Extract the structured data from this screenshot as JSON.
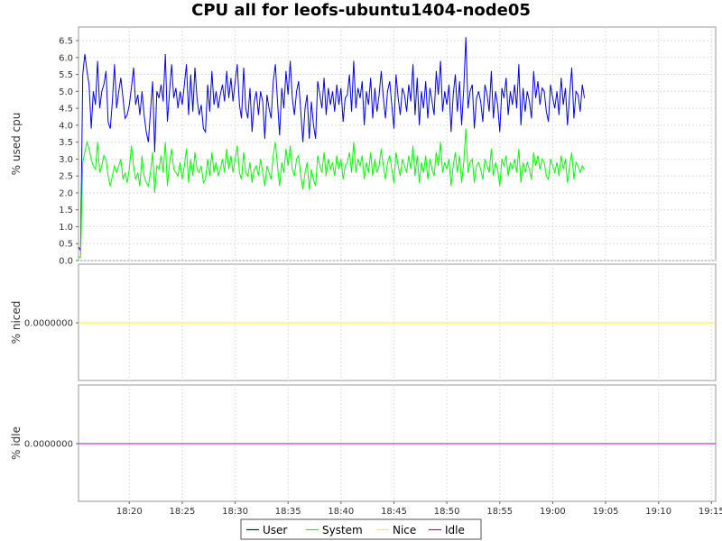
{
  "chart_data": {
    "type": "line",
    "title": "CPU all for leofs-ubuntu1404-node05",
    "x_ticks": [
      "18:20",
      "18:25",
      "18:30",
      "18:35",
      "18:40",
      "18:45",
      "18:50",
      "18:55",
      "19:00",
      "19:05",
      "19:10",
      "19:15"
    ],
    "x_tick_minutes": [
      20,
      25,
      30,
      35,
      40,
      45,
      50,
      55,
      60,
      65,
      70,
      75
    ],
    "x_range_minutes": [
      15.2,
      75.4
    ],
    "x_origin": "18:00",
    "legend_position": "bottom",
    "grid": true,
    "panels": [
      {
        "ylabel": "% used cpu",
        "ylim": [
          0,
          6.9
        ],
        "y_ticks": [
          "0.0",
          "0.5",
          "1.0",
          "1.5",
          "2.0",
          "2.5",
          "3.0",
          "3.5",
          "4.0",
          "4.5",
          "5.0",
          "5.5",
          "6.0",
          "6.5"
        ],
        "series": [
          {
            "name": "User",
            "color": "#0000ff",
            "start_minute": 15.2,
            "step_minutes": 0.2,
            "values": [
              0.4,
              0.3,
              5.5,
              6.1,
              5.6,
              5.2,
              3.9,
              5.0,
              4.6,
              5.9,
              4.5,
              5.0,
              5.2,
              5.6,
              4.1,
              3.9,
              4.7,
              5.8,
              4.5,
              5.0,
              5.4,
              4.8,
              4.2,
              4.3,
              4.6,
              5.1,
              5.7,
              4.6,
              4.9,
              4.3,
              5.0,
              4.3,
              3.8,
              3.5,
              4.4,
              5.3,
              3.2,
              5.0,
              4.8,
              5.2,
              4.7,
              6.1,
              4.1,
              5.0,
              5.8,
              4.8,
              5.1,
              4.5,
              5.0,
              4.6,
              5.2,
              5.8,
              4.3,
              5.5,
              4.4,
              5.7,
              4.8,
              4.3,
              4.6,
              3.9,
              3.8,
              5.2,
              4.4,
              5.6,
              4.6,
              5.0,
              4.5,
              4.9,
              5.2,
              4.7,
              5.6,
              4.8,
              5.4,
              4.7,
              5.3,
              5.8,
              4.6,
              4.2,
              5.7,
              4.5,
              4.2,
              5.1,
              3.8,
              4.7,
              5.0,
              4.3,
              5.0,
              4.7,
              3.6,
              4.9,
              4.5,
              4.2,
              5.3,
              5.8,
              4.7,
              3.7,
              5.1,
              4.5,
              5.6,
              4.9,
              5.9,
              4.8,
              4.3,
              5.0,
              5.3,
              4.4,
              3.5,
              4.5,
              4.9,
              3.6,
              4.7,
              4.0,
              3.6,
              5.3,
              4.9,
              4.5,
              5.4,
              4.3,
              5.1,
              4.6,
              5.0,
              4.4,
              5.2,
              4.6,
              5.1,
              4.1,
              4.8,
              4.9,
              5.5,
              4.4,
              5.9,
              4.5,
              5.1,
              4.8,
              5.3,
              4.0,
              5.0,
              4.6,
              5.4,
              4.2,
              5.1,
              4.4,
              4.9,
              5.6,
              4.8,
              4.2,
              5.0,
              5.3,
              4.6,
              3.9,
              5.5,
              4.8,
              4.3,
              5.1,
              4.9,
              4.4,
              5.2,
              4.7,
              5.8,
              4.3,
              5.4,
              4.0,
              5.0,
              4.5,
              5.3,
              4.2,
              5.1,
              4.7,
              4.3,
              5.6,
              4.9,
              5.9,
              4.4,
              5.0,
              4.6,
              5.2,
              3.8,
              4.9,
              5.5,
              4.4,
              5.3,
              4.0,
              5.1,
              6.6,
              4.5,
              5.0,
              5.2,
              3.9,
              4.8,
              5.0,
              4.7,
              4.1,
              5.2,
              4.9,
              4.4,
              5.6,
              4.2,
              5.0,
              4.6,
              3.8,
              5.1,
              4.8,
              5.4,
              4.3,
              5.0,
              4.6,
              5.2,
              4.5,
              5.8,
              4.0,
              5.1,
              4.4,
              5.0,
              4.7,
              4.2,
              5.6,
              4.8,
              5.3,
              4.6,
              5.1,
              5.0,
              4.4,
              4.1,
              5.2,
              4.8,
              4.5,
              5.0,
              4.3,
              5.4,
              4.6,
              5.1,
              4.0,
              4.9,
              5.7,
              4.2,
              5.0,
              4.9,
              4.4,
              5.2,
              4.8
            ]
          },
          {
            "name": "System",
            "color": "#00ff00",
            "start_minute": 15.2,
            "step_minutes": 0.2,
            "values": [
              0.1,
              0.1,
              2.9,
              3.2,
              3.5,
              3.3,
              3.0,
              2.8,
              2.7,
              3.5,
              2.6,
              2.8,
              3.1,
              3.0,
              2.5,
              2.2,
              2.5,
              2.8,
              2.6,
              2.8,
              3.0,
              2.4,
              2.6,
              2.3,
              2.7,
              3.4,
              2.8,
              2.4,
              2.6,
              2.2,
              3.1,
              2.5,
              2.3,
              2.2,
              2.6,
              3.2,
              2.0,
              2.8,
              2.7,
              3.1,
              2.6,
              3.5,
              2.2,
              2.9,
              3.3,
              2.7,
              2.6,
              2.5,
              2.9,
              2.4,
              2.8,
              3.3,
              2.3,
              3.0,
              2.5,
              3.2,
              2.7,
              2.6,
              2.8,
              2.3,
              2.4,
              3.0,
              2.5,
              3.2,
              2.6,
              2.9,
              2.5,
              2.7,
              3.0,
              2.6,
              3.3,
              2.7,
              3.1,
              2.6,
              3.0,
              3.4,
              2.6,
              2.4,
              3.2,
              2.6,
              2.5,
              2.9,
              2.3,
              2.7,
              2.8,
              2.5,
              3.0,
              2.6,
              2.2,
              2.8,
              2.6,
              2.4,
              3.1,
              3.5,
              2.8,
              2.2,
              2.9,
              2.6,
              3.3,
              2.8,
              3.4,
              2.7,
              2.5,
              3.0,
              3.1,
              2.5,
              2.1,
              2.6,
              2.9,
              2.1,
              2.7,
              2.4,
              2.2,
              3.1,
              2.8,
              2.6,
              3.2,
              2.5,
              3.0,
              2.7,
              2.9,
              2.5,
              3.1,
              2.7,
              3.0,
              2.4,
              2.8,
              2.9,
              3.2,
              2.6,
              3.5,
              2.6,
              3.0,
              2.8,
              3.1,
              2.4,
              2.9,
              2.6,
              3.2,
              2.5,
              3.0,
              2.6,
              2.8,
              3.3,
              2.8,
              2.4,
              2.9,
              3.1,
              2.7,
              2.3,
              3.2,
              2.8,
              2.5,
              3.0,
              2.8,
              2.6,
              3.1,
              2.7,
              3.4,
              2.5,
              3.1,
              2.3,
              2.9,
              2.6,
              3.1,
              2.4,
              3.0,
              2.7,
              2.5,
              3.2,
              2.8,
              3.5,
              2.6,
              2.9,
              2.7,
              3.0,
              2.2,
              2.8,
              3.2,
              2.6,
              3.1,
              2.3,
              2.9,
              3.9,
              2.6,
              2.9,
              3.0,
              2.3,
              2.8,
              2.9,
              2.7,
              2.4,
              3.0,
              2.8,
              2.6,
              3.3,
              2.5,
              2.9,
              2.7,
              2.2,
              3.0,
              2.8,
              3.1,
              2.5,
              2.9,
              2.7,
              3.0,
              2.6,
              3.3,
              2.3,
              2.9,
              2.6,
              2.9,
              2.7,
              2.4,
              3.2,
              2.8,
              3.1,
              2.7,
              3.0,
              2.9,
              2.5,
              2.4,
              3.0,
              2.8,
              2.6,
              2.9,
              2.5,
              3.1,
              2.7,
              3.0,
              2.3,
              2.8,
              3.2,
              2.4,
              2.9,
              2.8,
              2.6,
              2.8,
              2.7
            ]
          }
        ]
      },
      {
        "ylabel": "% niced",
        "y_ticks": [
          "0.0000000"
        ],
        "series": [
          {
            "name": "Nice",
            "color": "#ffff00",
            "constant": 0.0
          }
        ]
      },
      {
        "ylabel": "% idle",
        "y_ticks": [
          "0.0000000"
        ],
        "series": [
          {
            "name": "Idle",
            "color": "#c000c0",
            "constant": 0.0
          }
        ]
      }
    ],
    "legend": [
      {
        "name": "User",
        "color": "#0000ff"
      },
      {
        "name": "System",
        "color": "#00ff00"
      },
      {
        "name": "Nice",
        "color": "#ffff00"
      },
      {
        "name": "Idle",
        "color": "#c000c0"
      }
    ]
  }
}
